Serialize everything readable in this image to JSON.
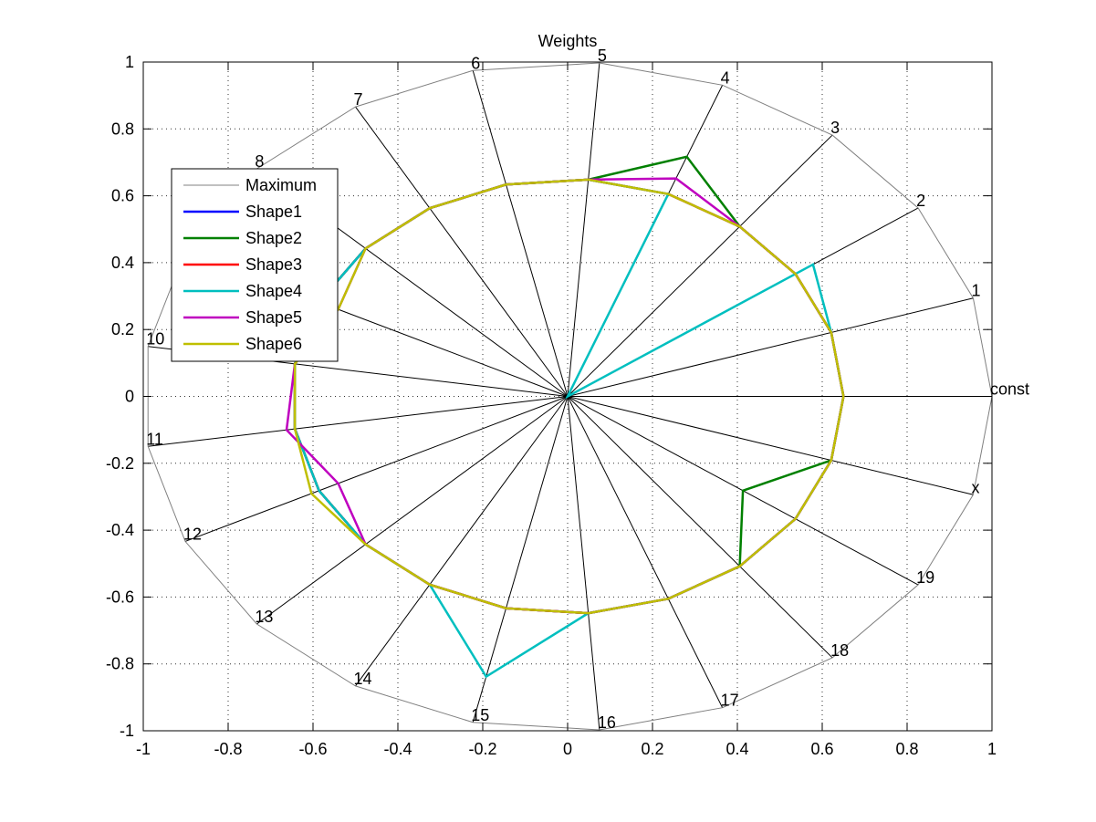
{
  "chart_data": {
    "type": "radar",
    "title": "Weights",
    "xlim": [
      -1,
      1
    ],
    "ylim": [
      -1,
      1
    ],
    "grid": true,
    "legend_position": "top-left",
    "x_ticks": [
      "-1",
      "-0.8",
      "-0.6",
      "-0.4",
      "-0.2",
      "0",
      "0.2",
      "0.4",
      "0.6",
      "0.8",
      "1"
    ],
    "y_ticks": [
      "-1",
      "-0.8",
      "-0.6",
      "-0.4",
      "-0.2",
      "0",
      "0.2",
      "0.4",
      "0.6",
      "0.8",
      "1"
    ],
    "spokes": [
      "const",
      "1",
      "2",
      "3",
      "4",
      "5",
      "6",
      "7",
      "8",
      "9",
      "10",
      "11",
      "12",
      "13",
      "14",
      "15",
      "16",
      "17",
      "18",
      "19",
      "x"
    ],
    "spoke_angles_deg": [
      0,
      17.1,
      34.3,
      51.4,
      68.6,
      85.7,
      102.9,
      120,
      137.1,
      154.3,
      171.4,
      188.6,
      205.7,
      222.9,
      240,
      257.1,
      274.3,
      291.4,
      308.6,
      325.7,
      342.9
    ],
    "series": [
      {
        "name": "Maximum",
        "color": "#808080",
        "width": 1,
        "values": [
          1,
          1,
          1,
          1,
          1,
          1,
          1,
          1,
          1,
          1,
          1,
          1,
          1,
          1,
          1,
          1,
          1,
          1,
          1,
          1,
          1
        ]
      },
      {
        "name": "Shape1",
        "color": "#0000ff",
        "width": 2.5,
        "values": [
          0.65,
          0.65,
          0.65,
          0.65,
          0.65,
          0.65,
          0.65,
          0.65,
          0.65,
          0.65,
          0.65,
          0.65,
          0.65,
          0.65,
          0.65,
          0.65,
          0.65,
          0.65,
          0.65,
          0.65,
          0.65
        ]
      },
      {
        "name": "Shape2",
        "color": "#008000",
        "width": 2.5,
        "values": [
          0.65,
          0.65,
          0.65,
          0.65,
          0.77,
          0.65,
          0.65,
          0.65,
          0.65,
          0.65,
          0.65,
          0.65,
          0.65,
          0.65,
          0.65,
          0.65,
          0.65,
          0.65,
          0.65,
          0.5,
          0.65
        ]
      },
      {
        "name": "Shape3",
        "color": "#ff0000",
        "width": 2.5,
        "values": [
          0.65,
          0.65,
          0.65,
          0.65,
          0.65,
          0.65,
          0.65,
          0.65,
          0.65,
          0.65,
          0.65,
          0.65,
          0.65,
          0.65,
          0.65,
          0.65,
          0.65,
          0.65,
          0.65,
          0.65,
          0.65
        ]
      },
      {
        "name": "Shape4",
        "color": "#00bfbf",
        "width": 2.5,
        "values": [
          0.65,
          0.65,
          0.7,
          0.0,
          0.65,
          0.65,
          0.65,
          0.65,
          0.65,
          0.65,
          0.65,
          0.65,
          0.65,
          0.65,
          0.65,
          0.86,
          0.65,
          0.65,
          0.65,
          0.65,
          0.65
        ]
      },
      {
        "name": "Shape5",
        "color": "#bf00bf",
        "width": 2.5,
        "values": [
          0.65,
          0.65,
          0.65,
          0.65,
          0.7,
          0.65,
          0.65,
          0.65,
          0.65,
          0.6,
          0.65,
          0.67,
          0.6,
          0.65,
          0.65,
          0.65,
          0.65,
          0.65,
          0.65,
          0.65,
          0.65
        ]
      },
      {
        "name": "Shape6",
        "color": "#bfbf00",
        "width": 2.5,
        "values": [
          0.65,
          0.65,
          0.65,
          0.65,
          0.65,
          0.65,
          0.65,
          0.65,
          0.65,
          0.6,
          0.65,
          0.65,
          0.67,
          0.65,
          0.65,
          0.65,
          0.65,
          0.65,
          0.65,
          0.65,
          0.65
        ]
      }
    ]
  }
}
